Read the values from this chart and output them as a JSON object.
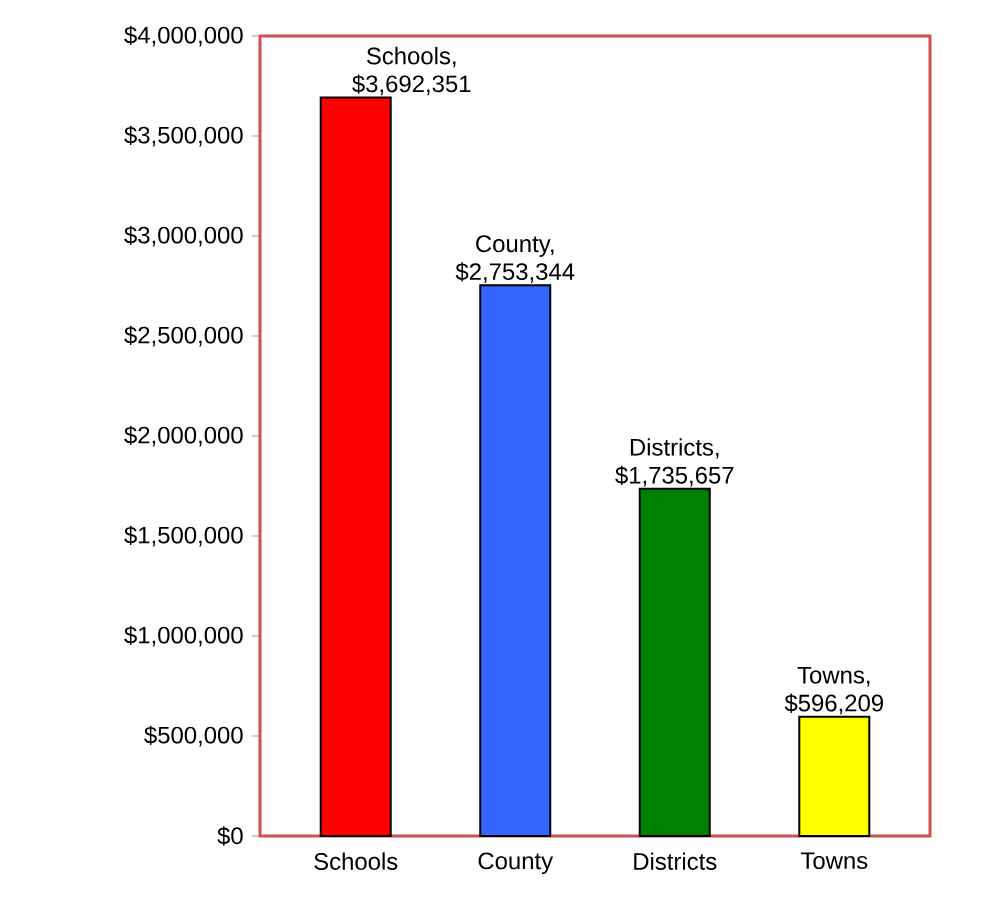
{
  "chart_data": {
    "type": "bar",
    "categories": [
      "Schools",
      "County",
      "Districts",
      "Towns"
    ],
    "values": [
      3692351,
      2753344,
      1735657,
      596209
    ],
    "colors": [
      "#ff0000",
      "#3366ff",
      "#008000",
      "#ffff00"
    ],
    "value_labels": [
      "Schools, $3,692,351",
      "County, $2,753,344",
      "Districts, $1,735,657",
      "Towns, $596,209"
    ],
    "ylim": [
      0,
      4000000
    ],
    "yticks": [
      {
        "value": 0,
        "label": "$0"
      },
      {
        "value": 500000,
        "label": "$500,000"
      },
      {
        "value": 1000000,
        "label": "$1,000,000"
      },
      {
        "value": 1500000,
        "label": "$1,500,000"
      },
      {
        "value": 2000000,
        "label": "$2,000,000"
      },
      {
        "value": 2500000,
        "label": "$2,500,000"
      },
      {
        "value": 3000000,
        "label": "$3,000,000"
      },
      {
        "value": 3500000,
        "label": "$3,500,000"
      },
      {
        "value": 4000000,
        "label": "$4,000,000"
      }
    ],
    "grid": false
  }
}
